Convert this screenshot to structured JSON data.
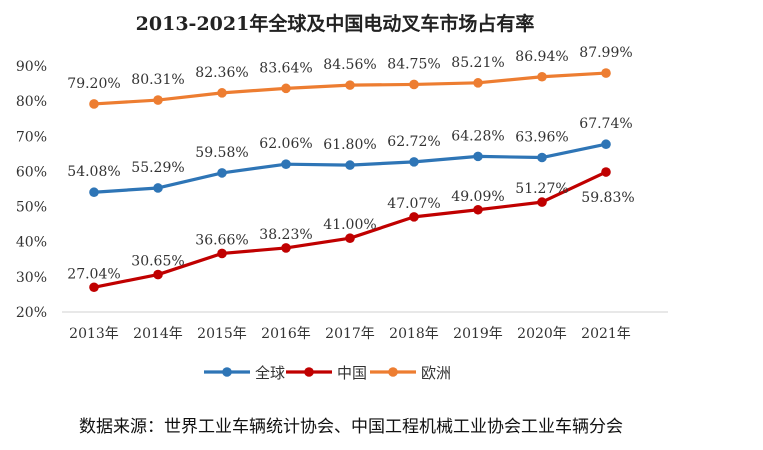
{
  "chart_data": {
    "type": "line",
    "title": "2013-2021年全球及中国电动叉车市场占有率",
    "categories": [
      "2013年",
      "2014年",
      "2015年",
      "2016年",
      "2017年",
      "2018年",
      "2019年",
      "2020年",
      "2021年"
    ],
    "y_ticks": [
      "20%",
      "30%",
      "40%",
      "50%",
      "60%",
      "70%",
      "80%",
      "90%"
    ],
    "ylim": [
      20,
      90
    ],
    "grid": false,
    "legend_position": "bottom",
    "series": [
      {
        "name": "全球",
        "color": "#2e75b6",
        "values": [
          54.08,
          55.29,
          59.58,
          62.06,
          61.8,
          62.72,
          64.28,
          63.96,
          67.74
        ],
        "labels": [
          "54.08%",
          "55.29%",
          "59.58%",
          "62.06%",
          "61.80%",
          "62.72%",
          "64.28%",
          "63.96%",
          "67.74%"
        ]
      },
      {
        "name": "中国",
        "color": "#c00000",
        "values": [
          27.04,
          30.65,
          36.66,
          38.23,
          41.0,
          47.07,
          49.09,
          51.27,
          59.83
        ],
        "labels": [
          "27.04%",
          "30.65%",
          "36.66%",
          "38.23%",
          "41.00%",
          "47.07%",
          "49.09%",
          "51.27%",
          "59.83%"
        ]
      },
      {
        "name": "欧洲",
        "color": "#ed7d31",
        "values": [
          79.2,
          80.31,
          82.36,
          83.64,
          84.56,
          84.75,
          85.21,
          86.94,
          87.99
        ],
        "labels": [
          "79.20%",
          "80.31%",
          "82.36%",
          "83.64%",
          "84.56%",
          "84.75%",
          "85.21%",
          "86.94%",
          "87.99%"
        ]
      }
    ]
  },
  "source_note": "数据来源：世界工业车辆统计协会、中国工程机械工业协会工业车辆分会"
}
